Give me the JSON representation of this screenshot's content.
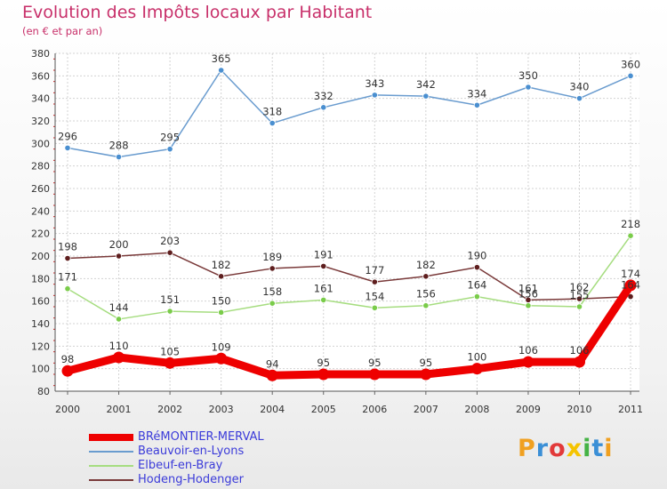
{
  "title": "Evolution des Impôts locaux par Habitant",
  "subtitle": "(en € et par an)",
  "logo_text": "Proxiti",
  "chart_data": {
    "type": "line",
    "x": [
      "2000",
      "2001",
      "2002",
      "2003",
      "2004",
      "2005",
      "2006",
      "2007",
      "2008",
      "2009",
      "2010",
      "2011"
    ],
    "ylim": [
      80,
      380
    ],
    "yticks": [
      80,
      100,
      120,
      140,
      160,
      180,
      200,
      220,
      240,
      260,
      280,
      300,
      320,
      340,
      360,
      380
    ],
    "grid": true,
    "legend_position": "bottom-left",
    "series": [
      {
        "name": "Beauvoir-en-Lyons",
        "color": "#6a9ccf",
        "marker": "#4a8fd0",
        "values": [
          296,
          288,
          295,
          365,
          318,
          332,
          343,
          342,
          334,
          350,
          340,
          360
        ],
        "labels": [
          "296",
          "288",
          "295",
          "365",
          "318",
          "332",
          "343",
          "342",
          "334",
          "350",
          "340",
          "360"
        ]
      },
      {
        "name": "Hodeng-Hodenger",
        "color": "#7a3a3a",
        "marker": "#5e1e1e",
        "values": [
          198,
          200,
          203,
          182,
          189,
          191,
          177,
          182,
          190,
          161,
          162,
          164
        ],
        "labels": [
          "198",
          "200",
          "203",
          "182",
          "189",
          "191",
          "177",
          "182",
          "190",
          "161",
          "162",
          "164"
        ]
      },
      {
        "name": "Elbeuf-en-Bray",
        "color": "#a6dd80",
        "marker": "#7acc4a",
        "values": [
          171,
          144,
          151,
          150,
          158,
          161,
          154,
          156,
          164,
          156,
          155,
          218
        ],
        "labels": [
          "171",
          "144",
          "151",
          "150",
          "158",
          "161",
          "154",
          "156",
          "164",
          "156",
          "155",
          "218"
        ]
      },
      {
        "name": "BRéMONTIER-MERVAL",
        "color": "#ee0000",
        "marker": "#ee0000",
        "values": [
          98,
          110,
          105,
          109,
          94,
          95,
          95,
          95,
          100,
          106,
          106,
          174
        ],
        "labels": [
          "98",
          "110",
          "105",
          "109",
          "94",
          "95",
          "95",
          "95",
          "100",
          "106",
          "106",
          "174"
        ]
      }
    ],
    "legend": [
      {
        "name": "BRéMONTIER-MERVAL",
        "color": "#ee0000"
      },
      {
        "name": "Beauvoir-en-Lyons",
        "color": "#6a9ccf"
      },
      {
        "name": "Elbeuf-en-Bray",
        "color": "#a6dd80"
      },
      {
        "name": "Hodeng-Hodenger",
        "color": "#7a3a3a"
      }
    ]
  }
}
